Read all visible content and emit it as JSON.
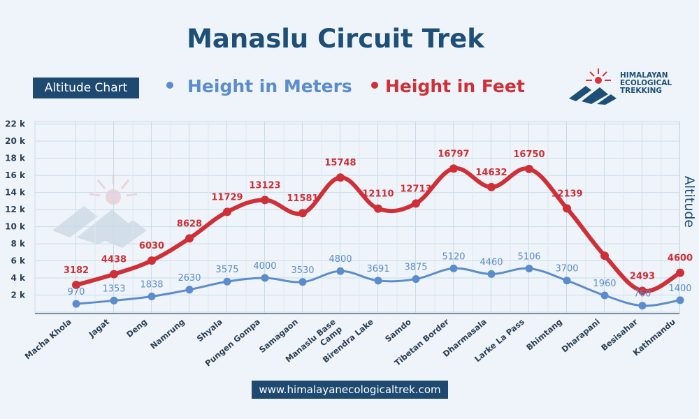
{
  "title": "Manaslu Circuit Trek",
  "badge": "Altitude Chart",
  "legend": {
    "meters": "Height in Meters",
    "feet": "Height in Feet"
  },
  "logo": {
    "line1": "HIMALAYAN",
    "line2": "ECOLOGICAL",
    "line3": "TREKKING"
  },
  "footer": "www.himalayanecologicaltrek.com",
  "colors": {
    "meters": "#5b8ccb",
    "meters_label": "#5b8ccb",
    "feet": "#cf2f36",
    "title": "#1d4f77",
    "badge_bg": "#1e4a72"
  },
  "chart_data": {
    "type": "line",
    "categories": [
      "Macha Khola",
      "Jagat",
      "Deng",
      "Namrung",
      "Shyala",
      "Pungen Gompa",
      "Samagaon",
      "Manaslu Base Camp",
      "Birendra Lake",
      "Samdo",
      "Tibetan Border",
      "Dharmasala",
      "Larke La Pass",
      "Bhimtang",
      "Dharapani",
      "Besisahar",
      "Kathmandu"
    ],
    "series": [
      {
        "name": "Height in Meters",
        "values": [
          970,
          1353,
          1838,
          2630,
          3575,
          4000,
          3530,
          4800,
          3691,
          3875,
          5120,
          4460,
          5106,
          3700,
          1960,
          760,
          1400
        ]
      },
      {
        "name": "Height in Feet",
        "values": [
          3182,
          4438,
          6030,
          8628,
          11729,
          13123,
          11581,
          15748,
          12110,
          12713,
          16797,
          14632,
          16750,
          12139,
          6600,
          2493,
          4600
        ],
        "labels": [
          "3182",
          "4438",
          "6030",
          "8628",
          "11729",
          "13123",
          "11581",
          "15748",
          "12110",
          "12713",
          "16797",
          "14632",
          "16750",
          "12139",
          "",
          "2493",
          "4600"
        ]
      }
    ],
    "yticks": [
      "2 k",
      "4 k",
      "6 k",
      "8 k",
      "10 k",
      "12 k",
      "14 k",
      "16 k",
      "18 k",
      "20 k",
      "22 k"
    ],
    "ylabel": "Altitude",
    "ylim": [
      0,
      22000
    ],
    "grid": true
  }
}
